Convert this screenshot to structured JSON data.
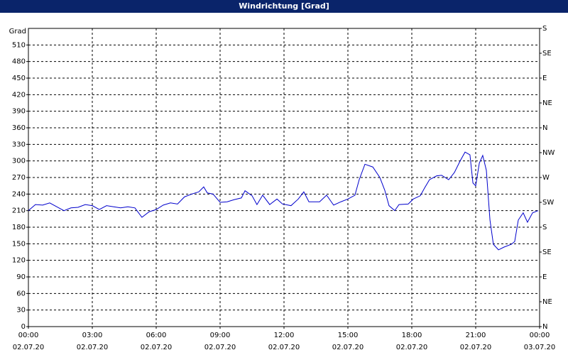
{
  "chart_data": {
    "type": "line",
    "title": "Windrichtung [Grad]",
    "y_label": "Grad",
    "ylim": [
      0,
      540
    ],
    "yticks": [
      0,
      30,
      60,
      90,
      120,
      150,
      180,
      210,
      240,
      270,
      300,
      330,
      360,
      390,
      420,
      450,
      480,
      510
    ],
    "y2lim": [
      0,
      540
    ],
    "y2ticks": [
      {
        "value": 0,
        "label": "N"
      },
      {
        "value": 45,
        "label": "NE"
      },
      {
        "value": 90,
        "label": "E"
      },
      {
        "value": 135,
        "label": "SE"
      },
      {
        "value": 180,
        "label": "S"
      },
      {
        "value": 225,
        "label": "SW"
      },
      {
        "value": 270,
        "label": "W"
      },
      {
        "value": 315,
        "label": "NW"
      },
      {
        "value": 360,
        "label": "N"
      },
      {
        "value": 405,
        "label": "NE"
      },
      {
        "value": 450,
        "label": "E"
      },
      {
        "value": 495,
        "label": "SE"
      },
      {
        "value": 540,
        "label": "S"
      }
    ],
    "xlim": [
      0,
      24
    ],
    "xticks": [
      {
        "value": 0,
        "label": "00:00"
      },
      {
        "value": 3,
        "label": "03:00"
      },
      {
        "value": 6,
        "label": "06:00"
      },
      {
        "value": 9,
        "label": "09:00"
      },
      {
        "value": 12,
        "label": "12:00"
      },
      {
        "value": 15,
        "label": "15:00"
      },
      {
        "value": 18,
        "label": "18:00"
      },
      {
        "value": 21,
        "label": "21:00"
      },
      {
        "value": 24,
        "label": "00:00"
      }
    ],
    "xtick_dates": [
      "02.07.20",
      "02.07.20",
      "02.07.20",
      "02.07.20",
      "02.07.20",
      "02.07.20",
      "02.07.20",
      "02.07.20",
      "03.07.20"
    ],
    "grid": true,
    "x": [
      0,
      0.33,
      0.67,
      1,
      1.33,
      1.67,
      2,
      2.33,
      2.67,
      3,
      3.33,
      3.67,
      4,
      4.33,
      4.67,
      5,
      5.33,
      5.67,
      6,
      6.33,
      6.67,
      7,
      7.33,
      7.67,
      8,
      8.23,
      8.4,
      8.67,
      9,
      9.33,
      9.67,
      10,
      10.17,
      10.5,
      10.73,
      11,
      11.33,
      11.67,
      11.93,
      12.33,
      12.67,
      12.93,
      13.17,
      13.67,
      14,
      14.33,
      14.67,
      15,
      15.33,
      15.53,
      15.8,
      16.17,
      16.5,
      16.73,
      16.93,
      17.2,
      17.4,
      17.83,
      18.07,
      18.4,
      18.6,
      18.83,
      19.17,
      19.4,
      19.73,
      20,
      20.27,
      20.5,
      20.73,
      20.87,
      21,
      21.17,
      21.33,
      21.5,
      21.67,
      21.83,
      22.07,
      22.33,
      22.67,
      22.83,
      23,
      23.23,
      23.43,
      23.67,
      23.93
    ],
    "series": [
      {
        "color": "#0000cc",
        "values": [
          210,
          221,
          220,
          224,
          217,
          210,
          215,
          216,
          221,
          219,
          212,
          219,
          217,
          215,
          217,
          215,
          198,
          208,
          212,
          220,
          224,
          222,
          235,
          240,
          244,
          253,
          242,
          240,
          225,
          226,
          230,
          233,
          246,
          237,
          221,
          238,
          221,
          231,
          222,
          219,
          231,
          244,
          226,
          226,
          238,
          220,
          226,
          231,
          238,
          266,
          294,
          289,
          270,
          247,
          219,
          210,
          221,
          222,
          231,
          237,
          251,
          266,
          273,
          274,
          266,
          279,
          300,
          316,
          311,
          260,
          255,
          296,
          310,
          283,
          193,
          149,
          139,
          144,
          149,
          154,
          193,
          206,
          189,
          206,
          210
        ]
      }
    ]
  }
}
